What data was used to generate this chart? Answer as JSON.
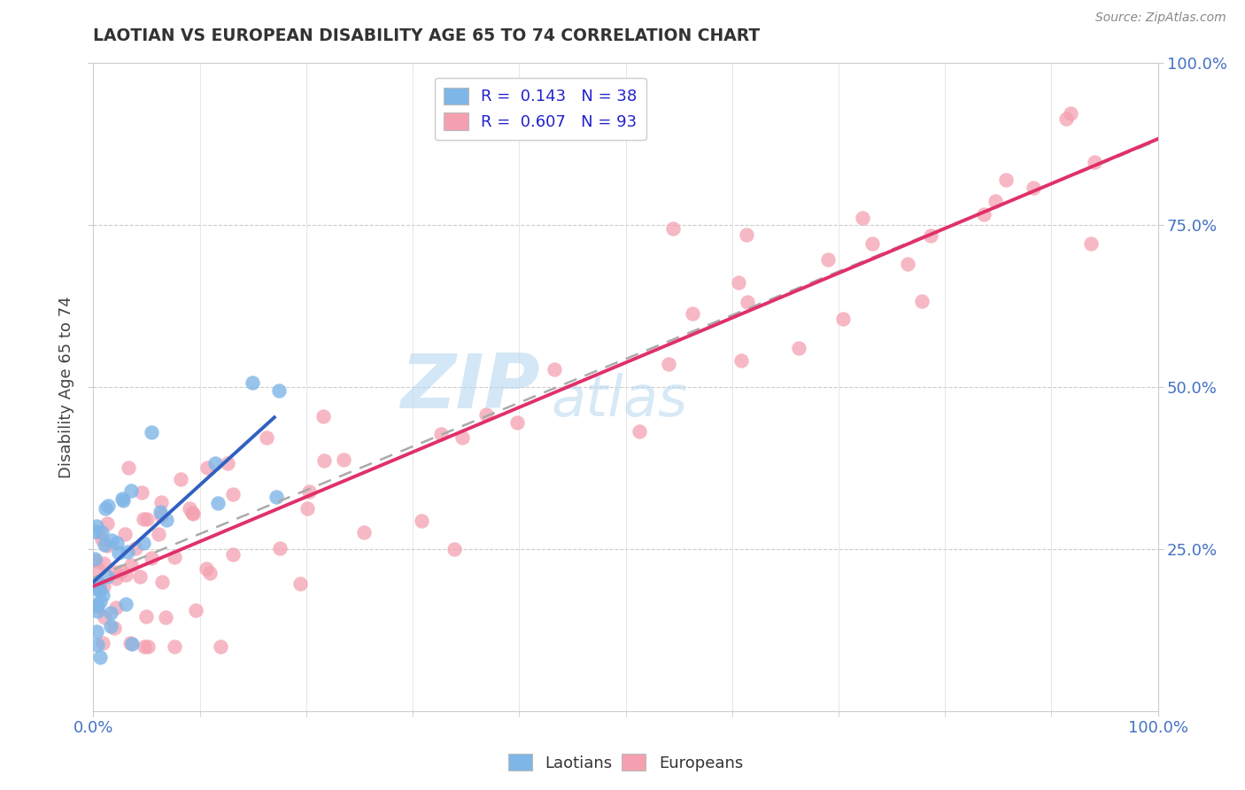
{
  "title": "LAOTIAN VS EUROPEAN DISABILITY AGE 65 TO 74 CORRELATION CHART",
  "source_text": "Source: ZipAtlas.com",
  "ylabel": "Disability Age 65 to 74",
  "xlabel": "",
  "xlim": [
    0,
    1
  ],
  "ylim": [
    0,
    1
  ],
  "laotian_color": "#7EB6E8",
  "european_color": "#F4A0B0",
  "laotian_line_color": "#3060C0",
  "european_line_color": "#E0306A",
  "dashed_line_color": "#AAAAAA",
  "laotian_R": 0.143,
  "laotian_N": 38,
  "european_R": 0.607,
  "european_N": 93,
  "watermark_zip": "ZIP",
  "watermark_atlas": "atlas",
  "legend_text_color": "#2222CC",
  "background_color": "#FFFFFF",
  "grid_color": "#DDDDDD",
  "title_color": "#333333",
  "source_color": "#888888",
  "ylabel_color": "#444444",
  "axis_label_color": "#4472C4"
}
